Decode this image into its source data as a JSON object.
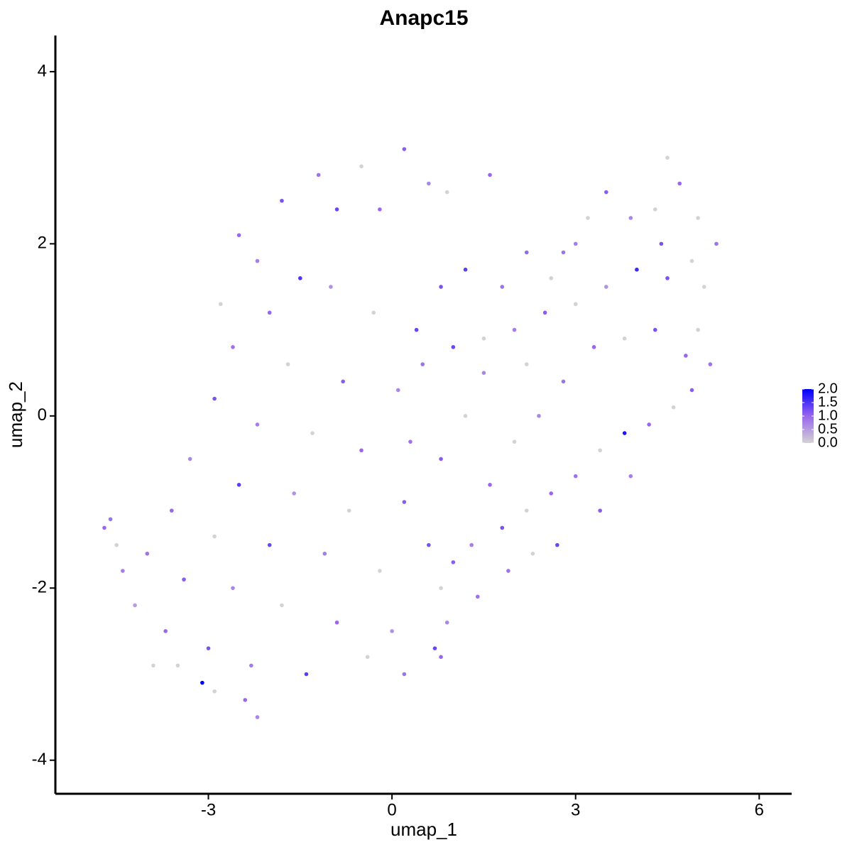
{
  "chart_data": {
    "type": "scatter",
    "title": "Anapc15",
    "x_label": "umap_1",
    "y_label": "umap_2",
    "xlim": [
      -5.5,
      6.53
    ],
    "ylim": [
      -4.39,
      4.42
    ],
    "xticks": [
      -3,
      0,
      3,
      6
    ],
    "yticks": [
      -4,
      -2,
      0,
      2,
      4
    ],
    "colorscale": [
      "#d3d3d3",
      "#9966ee",
      "#0000ff"
    ],
    "colorbar": {
      "lim": [
        0,
        2
      ],
      "ticks": [
        {
          "value": 0,
          "label": "0.0"
        },
        {
          "value": 0.5,
          "label": "0.5"
        },
        {
          "value": 1,
          "label": "1.0"
        },
        {
          "value": 1.5,
          "label": "1.5"
        },
        {
          "value": 2,
          "label": "2.0"
        }
      ]
    },
    "x": [
      -2.5,
      -2.2,
      -1.8,
      -1.2,
      -0.5,
      0.2,
      0.6,
      -0.9,
      -1.5,
      -2.8,
      -2.0,
      -1.0,
      -0.3,
      0.4,
      -2.6,
      -1.7,
      -0.8,
      0.1,
      -2.9,
      -2.2,
      -1.3,
      -0.5,
      0.3,
      -3.3,
      -2.5,
      -1.6,
      -0.7,
      0.2,
      -3.6,
      -2.9,
      -2.0,
      -1.1,
      -0.2,
      0.6,
      -4.0,
      -3.4,
      -2.6,
      -1.8,
      -0.9,
      0.0,
      0.7,
      -4.2,
      -3.7,
      -3.0,
      -2.3,
      -1.4,
      -0.4,
      0.2,
      -3.9,
      -3.1,
      -2.4,
      -2.2,
      -4.7,
      -4.6,
      -4.5,
      -4.4,
      -2.9,
      -3.5,
      1.2,
      1.8,
      2.2,
      2.6,
      3.0,
      3.5,
      3.9,
      4.3,
      4.5,
      4.7,
      5.0,
      5.3,
      4.9,
      4.5,
      4.0,
      3.5,
      3.0,
      2.5,
      2.0,
      1.5,
      1.0,
      1.5,
      2.2,
      2.8,
      3.3,
      3.8,
      4.3,
      4.8,
      5.0,
      5.2,
      4.9,
      4.6,
      4.2,
      3.8,
      3.4,
      3.0,
      2.6,
      2.2,
      1.8,
      1.3,
      1.0,
      0.8,
      1.4,
      0.9,
      0.8,
      3.4,
      3.9,
      2.7,
      2.3,
      1.9,
      1.2,
      0.8,
      1.6,
      2.0,
      2.4,
      0.5,
      0.8,
      1.6,
      0.9,
      -0.2,
      5.1,
      4.4,
      3.2,
      2.8
    ],
    "values": [
      2.1,
      1.8,
      2.5,
      2.8,
      2.9,
      3.1,
      2.7,
      2.4,
      1.6,
      1.3,
      1.2,
      1.5,
      1.2,
      1.0,
      0.8,
      0.6,
      0.4,
      0.3,
      0.2,
      -0.1,
      -0.2,
      -0.4,
      -0.3,
      -0.5,
      -0.8,
      -0.9,
      -1.1,
      -1.0,
      -1.1,
      -1.4,
      -1.5,
      -1.6,
      -1.8,
      -1.5,
      -1.6,
      -1.9,
      -2.0,
      -2.2,
      -2.4,
      -2.5,
      -2.7,
      -2.2,
      -2.5,
      -2.7,
      -2.9,
      -3.0,
      -2.8,
      -3.0,
      -2.9,
      -3.1,
      -3.3,
      -3.5,
      -1.3,
      -1.2,
      -1.5,
      -1.8,
      -3.2,
      -2.9,
      1.7,
      1.5,
      1.9,
      1.6,
      2.0,
      2.6,
      2.3,
      2.4,
      3.0,
      2.7,
      2.3,
      2.0,
      1.8,
      1.6,
      1.7,
      1.5,
      1.3,
      1.2,
      1.0,
      0.9,
      0.8,
      0.5,
      0.6,
      0.4,
      0.8,
      0.9,
      1.0,
      0.7,
      1.0,
      0.6,
      0.3,
      0.1,
      -0.1,
      -0.2,
      -0.4,
      -0.7,
      -0.9,
      -1.1,
      -1.3,
      -1.5,
      -1.7,
      -2.0,
      -2.1,
      -2.4,
      -2.8,
      -1.1,
      -0.7,
      -1.5,
      -1.6,
      -1.8,
      0.0,
      -0.5,
      -0.8,
      -0.3,
      0.0,
      0.6,
      1.5,
      2.8,
      2.6,
      2.4,
      1.5,
      2.0,
      2.3,
      1.9
    ],
    "expression": [
      1.0,
      0.8,
      1.2,
      0.9,
      0,
      1.1,
      0.7,
      1.3,
      1.5,
      0,
      1.0,
      0.6,
      0,
      1.3,
      0.9,
      0,
      1.1,
      0.7,
      1.2,
      0.8,
      0,
      1.0,
      0.9,
      0.7,
      1.4,
      0.6,
      0,
      1.1,
      1.0,
      0,
      1.3,
      0.8,
      0,
      1.2,
      0.9,
      1.1,
      0.7,
      0,
      1.0,
      0.6,
      1.3,
      0.5,
      1.0,
      1.2,
      0.8,
      1.4,
      0,
      0.9,
      0,
      2.0,
      1.0,
      0.7,
      1.0,
      0.9,
      0,
      0.8,
      0,
      0,
      1.4,
      0.9,
      1.0,
      0,
      0.8,
      1.1,
      0.7,
      0,
      0,
      1.0,
      0,
      0.9,
      0,
      1.2,
      1.6,
      0.6,
      0,
      1.1,
      0.8,
      0,
      1.3,
      0.7,
      0,
      0.9,
      1.0,
      0,
      1.2,
      1.0,
      0,
      0.9,
      1.1,
      0,
      1.0,
      1.8,
      0,
      0.9,
      1.0,
      0,
      1.2,
      0.8,
      1.1,
      0,
      0.9,
      0.7,
      1.0,
      1.1,
      0.8,
      1.3,
      0,
      0.9,
      0,
      1.1,
      1.0,
      0,
      0.7,
      0.9,
      1.2,
      1.0,
      0,
      1.0,
      0,
      1.2,
      0,
      0.9
    ]
  }
}
